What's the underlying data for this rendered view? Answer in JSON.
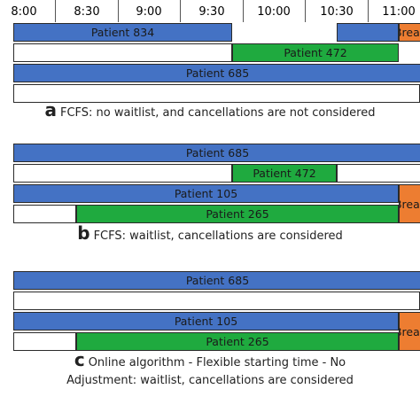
{
  "timeline": {
    "ticks": [
      "8:00",
      "8:30",
      "9:00",
      "9:30",
      "10:00",
      "10:30",
      "11:00"
    ]
  },
  "colors": {
    "blue": "#4472c4",
    "green": "#1faa3f",
    "orange": "#ed7d31",
    "white": "#ffffff"
  },
  "panels": [
    {
      "letter": "a",
      "caption_lines": [
        "FCFS: no waitlist, and cancellations are not considered"
      ],
      "rows": [
        [
          {
            "start": "7:55",
            "end": "9:40",
            "label": "Patient 834",
            "color": "blue"
          },
          {
            "start": "10:30",
            "end": "11:00",
            "label": "",
            "color": "blue"
          },
          {
            "start": "11:00",
            "end": "11:20",
            "label": "Break",
            "color": "orange"
          }
        ],
        [
          {
            "start": "7:55",
            "end": "9:40",
            "label": "",
            "color": "white"
          },
          {
            "start": "9:40",
            "end": "11:00",
            "label": "Patient 472",
            "color": "green"
          }
        ],
        [
          {
            "start": "7:55",
            "end": "11:20",
            "label": "Patient 685",
            "color": "blue"
          }
        ],
        [
          {
            "start": "7:55",
            "end": "11:10",
            "label": "",
            "color": "white"
          },
          {
            "start": "11:10",
            "end": "11:20",
            "label": "",
            "color": "green"
          }
        ]
      ]
    },
    {
      "letter": "b",
      "caption_lines": [
        "FCFS: waitlist, cancellations are considered"
      ],
      "rows": [
        [
          {
            "start": "7:55",
            "end": "11:20",
            "label": "Patient 685",
            "color": "blue"
          }
        ],
        [
          {
            "start": "7:55",
            "end": "9:40",
            "label": "",
            "color": "white"
          },
          {
            "start": "9:40",
            "end": "10:30",
            "label": "Patient 472",
            "color": "green"
          },
          {
            "start": "10:30",
            "end": "11:20",
            "label": "",
            "color": "white"
          }
        ],
        [
          {
            "start": "7:55",
            "end": "11:00",
            "label": "Patient 105",
            "color": "blue"
          },
          {
            "start": "11:00",
            "end": "11:20",
            "label": "Break",
            "color": "orange",
            "span": 2
          }
        ],
        [
          {
            "start": "7:55",
            "end": "8:25",
            "label": "",
            "color": "white"
          },
          {
            "start": "8:25",
            "end": "11:00",
            "label": "Patient 265",
            "color": "green"
          }
        ]
      ]
    },
    {
      "letter": "c",
      "caption_lines": [
        "Online algorithm - Flexible starting time - No",
        "Adjustment: waitlist, cancellations are considered"
      ],
      "rows": [
        [
          {
            "start": "7:55",
            "end": "11:20",
            "label": "Patient 685",
            "color": "blue"
          }
        ],
        [
          {
            "start": "7:55",
            "end": "11:10",
            "label": "",
            "color": "white"
          },
          {
            "start": "11:10",
            "end": "11:20",
            "label": "",
            "color": "green"
          }
        ],
        [
          {
            "start": "7:55",
            "end": "11:00",
            "label": "Patient 105",
            "color": "blue"
          },
          {
            "start": "11:00",
            "end": "11:20",
            "label": "Break",
            "color": "orange",
            "span": 2
          }
        ],
        [
          {
            "start": "7:55",
            "end": "8:25",
            "label": "",
            "color": "white"
          },
          {
            "start": "8:25",
            "end": "11:00",
            "label": "Patient 265",
            "color": "green"
          }
        ]
      ]
    }
  ]
}
